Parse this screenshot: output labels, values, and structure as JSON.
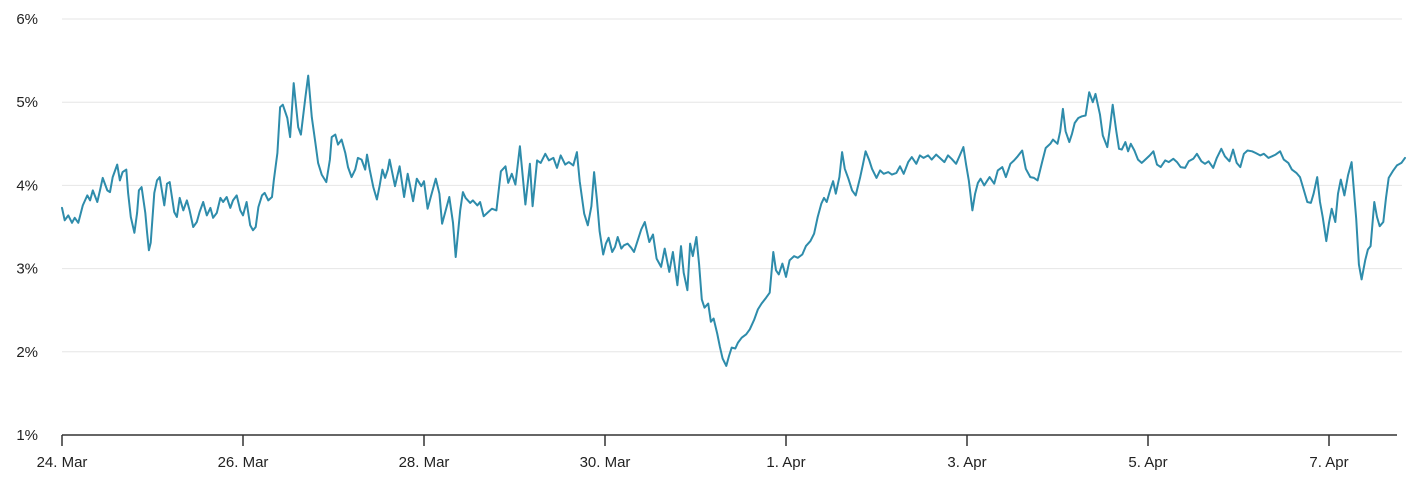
{
  "chart_data": {
    "type": "line",
    "title": "",
    "legend": "none",
    "grid": "horizontal",
    "unit": "%",
    "y_axis": {
      "min": 1,
      "max": 6,
      "labels": [
        "6%",
        "5%",
        "4%",
        "3%",
        "2%",
        "1%"
      ],
      "label_values": [
        6,
        5,
        4,
        3,
        2,
        1
      ],
      "gridline_values": [
        6,
        5,
        4,
        3,
        2
      ]
    },
    "x_axis": {
      "tick_labels": [
        "24. Mar",
        "26. Mar",
        "28. Mar",
        "30. Mar",
        "1. Apr",
        "3. Apr",
        "5. Apr",
        "7. Apr"
      ],
      "tick_day_offsets": [
        0,
        2,
        4,
        6,
        8,
        10,
        12,
        14
      ],
      "range_days": [
        0,
        14.85
      ]
    },
    "points_day_pct": [
      [
        0,
        3.73
      ],
      [
        0.03,
        3.58
      ],
      [
        0.07,
        3.64
      ],
      [
        0.11,
        3.55
      ],
      [
        0.14,
        3.61
      ],
      [
        0.18,
        3.55
      ],
      [
        0.23,
        3.76
      ],
      [
        0.28,
        3.88
      ],
      [
        0.31,
        3.82
      ],
      [
        0.34,
        3.94
      ],
      [
        0.39,
        3.8
      ],
      [
        0.42,
        3.94
      ],
      [
        0.45,
        4.09
      ],
      [
        0.5,
        3.94
      ],
      [
        0.53,
        3.92
      ],
      [
        0.56,
        4.1
      ],
      [
        0.61,
        4.25
      ],
      [
        0.64,
        4.06
      ],
      [
        0.67,
        4.16
      ],
      [
        0.71,
        4.19
      ],
      [
        0.73,
        3.91
      ],
      [
        0.76,
        3.62
      ],
      [
        0.8,
        3.43
      ],
      [
        0.83,
        3.67
      ],
      [
        0.85,
        3.94
      ],
      [
        0.88,
        3.98
      ],
      [
        0.92,
        3.67
      ],
      [
        0.94,
        3.43
      ],
      [
        0.96,
        3.22
      ],
      [
        0.98,
        3.31
      ],
      [
        1.02,
        3.91
      ],
      [
        1.05,
        4.06
      ],
      [
        1.08,
        4.1
      ],
      [
        1.13,
        3.76
      ],
      [
        1.16,
        4.02
      ],
      [
        1.19,
        4.04
      ],
      [
        1.24,
        3.68
      ],
      [
        1.27,
        3.62
      ],
      [
        1.3,
        3.85
      ],
      [
        1.34,
        3.7
      ],
      [
        1.38,
        3.82
      ],
      [
        1.41,
        3.7
      ],
      [
        1.45,
        3.5
      ],
      [
        1.49,
        3.56
      ],
      [
        1.52,
        3.68
      ],
      [
        1.56,
        3.8
      ],
      [
        1.6,
        3.64
      ],
      [
        1.64,
        3.73
      ],
      [
        1.67,
        3.61
      ],
      [
        1.71,
        3.67
      ],
      [
        1.75,
        3.85
      ],
      [
        1.78,
        3.8
      ],
      [
        1.82,
        3.86
      ],
      [
        1.86,
        3.73
      ],
      [
        1.89,
        3.82
      ],
      [
        1.93,
        3.88
      ],
      [
        1.97,
        3.7
      ],
      [
        2,
        3.64
      ],
      [
        2.04,
        3.8
      ],
      [
        2.08,
        3.52
      ],
      [
        2.11,
        3.46
      ],
      [
        2.14,
        3.5
      ],
      [
        2.17,
        3.74
      ],
      [
        2.21,
        3.88
      ],
      [
        2.24,
        3.91
      ],
      [
        2.28,
        3.82
      ],
      [
        2.32,
        3.86
      ],
      [
        2.34,
        4.06
      ],
      [
        2.38,
        4.39
      ],
      [
        2.41,
        4.94
      ],
      [
        2.44,
        4.97
      ],
      [
        2.49,
        4.81
      ],
      [
        2.52,
        4.58
      ],
      [
        2.56,
        5.23
      ],
      [
        2.61,
        4.7
      ],
      [
        2.64,
        4.61
      ],
      [
        2.69,
        5.06
      ],
      [
        2.72,
        5.32
      ],
      [
        2.76,
        4.82
      ],
      [
        2.8,
        4.51
      ],
      [
        2.83,
        4.27
      ],
      [
        2.87,
        4.13
      ],
      [
        2.92,
        4.04
      ],
      [
        2.96,
        4.31
      ],
      [
        2.98,
        4.58
      ],
      [
        3.02,
        4.61
      ],
      [
        3.05,
        4.49
      ],
      [
        3.09,
        4.55
      ],
      [
        3.13,
        4.39
      ],
      [
        3.16,
        4.22
      ],
      [
        3.2,
        4.1
      ],
      [
        3.24,
        4.19
      ],
      [
        3.27,
        4.33
      ],
      [
        3.31,
        4.31
      ],
      [
        3.35,
        4.19
      ],
      [
        3.37,
        4.37
      ],
      [
        3.4,
        4.19
      ],
      [
        3.44,
        3.98
      ],
      [
        3.48,
        3.83
      ],
      [
        3.51,
        4
      ],
      [
        3.54,
        4.19
      ],
      [
        3.57,
        4.09
      ],
      [
        3.6,
        4.19
      ],
      [
        3.62,
        4.31
      ],
      [
        3.68,
        3.99
      ],
      [
        3.73,
        4.23
      ],
      [
        3.78,
        3.86
      ],
      [
        3.82,
        4.14
      ],
      [
        3.88,
        3.81
      ],
      [
        3.92,
        4.08
      ],
      [
        3.97,
        3.99
      ],
      [
        4,
        4.05
      ],
      [
        4.04,
        3.72
      ],
      [
        4.08,
        3.88
      ],
      [
        4.13,
        4.08
      ],
      [
        4.17,
        3.9
      ],
      [
        4.2,
        3.54
      ],
      [
        4.24,
        3.7
      ],
      [
        4.28,
        3.86
      ],
      [
        4.32,
        3.55
      ],
      [
        4.35,
        3.14
      ],
      [
        4.4,
        3.7
      ],
      [
        4.43,
        3.92
      ],
      [
        4.46,
        3.85
      ],
      [
        4.51,
        3.79
      ],
      [
        4.54,
        3.82
      ],
      [
        4.59,
        3.76
      ],
      [
        4.62,
        3.8
      ],
      [
        4.66,
        3.63
      ],
      [
        4.71,
        3.68
      ],
      [
        4.75,
        3.72
      ],
      [
        4.8,
        3.7
      ],
      [
        4.85,
        4.17
      ],
      [
        4.9,
        4.23
      ],
      [
        4.93,
        4.03
      ],
      [
        4.97,
        4.14
      ],
      [
        5.01,
        4.01
      ],
      [
        5.06,
        4.47
      ],
      [
        5.12,
        3.77
      ],
      [
        5.17,
        4.26
      ],
      [
        5.2,
        3.75
      ],
      [
        5.25,
        4.3
      ],
      [
        5.29,
        4.27
      ],
      [
        5.34,
        4.38
      ],
      [
        5.38,
        4.3
      ],
      [
        5.43,
        4.33
      ],
      [
        5.47,
        4.21
      ],
      [
        5.51,
        4.36
      ],
      [
        5.56,
        4.25
      ],
      [
        5.6,
        4.28
      ],
      [
        5.65,
        4.24
      ],
      [
        5.69,
        4.4
      ],
      [
        5.72,
        4.05
      ],
      [
        5.77,
        3.66
      ],
      [
        5.81,
        3.52
      ],
      [
        5.85,
        3.75
      ],
      [
        5.88,
        4.16
      ],
      [
        5.91,
        3.83
      ],
      [
        5.94,
        3.45
      ],
      [
        5.98,
        3.17
      ],
      [
        6.01,
        3.3
      ],
      [
        6.04,
        3.37
      ],
      [
        6.08,
        3.2
      ],
      [
        6.11,
        3.26
      ],
      [
        6.14,
        3.38
      ],
      [
        6.18,
        3.24
      ],
      [
        6.21,
        3.28
      ],
      [
        6.25,
        3.3
      ],
      [
        6.29,
        3.25
      ],
      [
        6.32,
        3.2
      ],
      [
        6.35,
        3.3
      ],
      [
        6.4,
        3.47
      ],
      [
        6.44,
        3.56
      ],
      [
        6.49,
        3.32
      ],
      [
        6.53,
        3.41
      ],
      [
        6.57,
        3.12
      ],
      [
        6.62,
        3.02
      ],
      [
        6.66,
        3.24
      ],
      [
        6.71,
        2.96
      ],
      [
        6.75,
        3.2
      ],
      [
        6.8,
        2.8
      ],
      [
        6.84,
        3.27
      ],
      [
        6.87,
        2.95
      ],
      [
        6.91,
        2.74
      ],
      [
        6.94,
        3.3
      ],
      [
        6.97,
        3.15
      ],
      [
        7.01,
        3.38
      ],
      [
        7.04,
        3.05
      ],
      [
        7.07,
        2.63
      ],
      [
        7.1,
        2.53
      ],
      [
        7.14,
        2.58
      ],
      [
        7.17,
        2.36
      ],
      [
        7.2,
        2.4
      ],
      [
        7.24,
        2.22
      ],
      [
        7.27,
        2.06
      ],
      [
        7.3,
        1.92
      ],
      [
        7.34,
        1.83
      ],
      [
        7.37,
        1.95
      ],
      [
        7.4,
        2.05
      ],
      [
        7.44,
        2.04
      ],
      [
        7.47,
        2.11
      ],
      [
        7.51,
        2.17
      ],
      [
        7.56,
        2.21
      ],
      [
        7.6,
        2.27
      ],
      [
        7.65,
        2.39
      ],
      [
        7.69,
        2.51
      ],
      [
        7.73,
        2.58
      ],
      [
        7.78,
        2.65
      ],
      [
        7.82,
        2.71
      ],
      [
        7.86,
        3.2
      ],
      [
        7.89,
        2.98
      ],
      [
        7.92,
        2.93
      ],
      [
        7.96,
        3.06
      ],
      [
        8,
        2.9
      ],
      [
        8.04,
        3.1
      ],
      [
        8.09,
        3.15
      ],
      [
        8.13,
        3.13
      ],
      [
        8.18,
        3.17
      ],
      [
        8.22,
        3.27
      ],
      [
        8.27,
        3.33
      ],
      [
        8.31,
        3.42
      ],
      [
        8.35,
        3.62
      ],
      [
        8.39,
        3.78
      ],
      [
        8.42,
        3.85
      ],
      [
        8.45,
        3.8
      ],
      [
        8.49,
        3.95
      ],
      [
        8.52,
        4.05
      ],
      [
        8.55,
        3.9
      ],
      [
        8.59,
        4.1
      ],
      [
        8.62,
        4.4
      ],
      [
        8.65,
        4.2
      ],
      [
        8.69,
        4.08
      ],
      [
        8.73,
        3.94
      ],
      [
        8.77,
        3.88
      ],
      [
        8.82,
        4.1
      ],
      [
        8.85,
        4.25
      ],
      [
        8.88,
        4.41
      ],
      [
        8.92,
        4.3
      ],
      [
        8.95,
        4.2
      ],
      [
        9,
        4.09
      ],
      [
        9.04,
        4.18
      ],
      [
        9.08,
        4.14
      ],
      [
        9.13,
        4.16
      ],
      [
        9.17,
        4.13
      ],
      [
        9.22,
        4.15
      ],
      [
        9.26,
        4.23
      ],
      [
        9.3,
        4.14
      ],
      [
        9.35,
        4.28
      ],
      [
        9.39,
        4.34
      ],
      [
        9.44,
        4.26
      ],
      [
        9.48,
        4.36
      ],
      [
        9.52,
        4.33
      ],
      [
        9.57,
        4.36
      ],
      [
        9.61,
        4.31
      ],
      [
        9.66,
        4.37
      ],
      [
        9.7,
        4.33
      ],
      [
        9.75,
        4.28
      ],
      [
        9.79,
        4.36
      ],
      [
        9.83,
        4.32
      ],
      [
        9.88,
        4.26
      ],
      [
        9.92,
        4.36
      ],
      [
        9.96,
        4.46
      ],
      [
        9.99,
        4.25
      ],
      [
        10.02,
        4.06
      ],
      [
        10.06,
        3.7
      ],
      [
        10.09,
        3.9
      ],
      [
        10.12,
        4.03
      ],
      [
        10.15,
        4.08
      ],
      [
        10.19,
        4
      ],
      [
        10.22,
        4.05
      ],
      [
        10.25,
        4.1
      ],
      [
        10.3,
        4.02
      ],
      [
        10.34,
        4.18
      ],
      [
        10.39,
        4.22
      ],
      [
        10.43,
        4.1
      ],
      [
        10.48,
        4.26
      ],
      [
        10.52,
        4.3
      ],
      [
        10.56,
        4.35
      ],
      [
        10.61,
        4.42
      ],
      [
        10.65,
        4.2
      ],
      [
        10.7,
        4.1
      ],
      [
        10.74,
        4.09
      ],
      [
        10.78,
        4.06
      ],
      [
        10.83,
        4.28
      ],
      [
        10.87,
        4.45
      ],
      [
        10.92,
        4.5
      ],
      [
        10.95,
        4.55
      ],
      [
        11,
        4.5
      ],
      [
        11.03,
        4.65
      ],
      [
        11.06,
        4.92
      ],
      [
        11.09,
        4.65
      ],
      [
        11.13,
        4.52
      ],
      [
        11.16,
        4.62
      ],
      [
        11.19,
        4.75
      ],
      [
        11.23,
        4.81
      ],
      [
        11.27,
        4.83
      ],
      [
        11.31,
        4.84
      ],
      [
        11.35,
        5.12
      ],
      [
        11.39,
        5
      ],
      [
        11.42,
        5.1
      ],
      [
        11.47,
        4.85
      ],
      [
        11.5,
        4.6
      ],
      [
        11.55,
        4.46
      ],
      [
        11.58,
        4.7
      ],
      [
        11.61,
        4.97
      ],
      [
        11.65,
        4.65
      ],
      [
        11.68,
        4.44
      ],
      [
        11.71,
        4.43
      ],
      [
        11.75,
        4.52
      ],
      [
        11.78,
        4.41
      ],
      [
        11.81,
        4.5
      ],
      [
        11.85,
        4.42
      ],
      [
        11.89,
        4.31
      ],
      [
        11.93,
        4.27
      ],
      [
        11.98,
        4.32
      ],
      [
        12.02,
        4.36
      ],
      [
        12.06,
        4.41
      ],
      [
        12.1,
        4.25
      ],
      [
        12.14,
        4.22
      ],
      [
        12.19,
        4.3
      ],
      [
        12.23,
        4.28
      ],
      [
        12.28,
        4.32
      ],
      [
        12.32,
        4.28
      ],
      [
        12.36,
        4.22
      ],
      [
        12.41,
        4.21
      ],
      [
        12.45,
        4.29
      ],
      [
        12.5,
        4.32
      ],
      [
        12.54,
        4.38
      ],
      [
        12.59,
        4.29
      ],
      [
        12.63,
        4.26
      ],
      [
        12.67,
        4.29
      ],
      [
        12.72,
        4.21
      ],
      [
        12.76,
        4.33
      ],
      [
        12.81,
        4.44
      ],
      [
        12.85,
        4.35
      ],
      [
        12.9,
        4.29
      ],
      [
        12.94,
        4.43
      ],
      [
        12.98,
        4.27
      ],
      [
        13.02,
        4.22
      ],
      [
        13.06,
        4.38
      ],
      [
        13.1,
        4.42
      ],
      [
        13.15,
        4.41
      ],
      [
        13.19,
        4.39
      ],
      [
        13.24,
        4.36
      ],
      [
        13.28,
        4.38
      ],
      [
        13.33,
        4.33
      ],
      [
        13.37,
        4.35
      ],
      [
        13.41,
        4.37
      ],
      [
        13.46,
        4.41
      ],
      [
        13.5,
        4.31
      ],
      [
        13.55,
        4.27
      ],
      [
        13.59,
        4.19
      ],
      [
        13.64,
        4.15
      ],
      [
        13.68,
        4.1
      ],
      [
        13.72,
        3.95
      ],
      [
        13.76,
        3.8
      ],
      [
        13.8,
        3.79
      ],
      [
        13.83,
        3.9
      ],
      [
        13.87,
        4.1
      ],
      [
        13.9,
        3.8
      ],
      [
        13.93,
        3.62
      ],
      [
        13.97,
        3.33
      ],
      [
        14,
        3.55
      ],
      [
        14.03,
        3.72
      ],
      [
        14.07,
        3.56
      ],
      [
        14.1,
        3.9
      ],
      [
        14.13,
        4.07
      ],
      [
        14.17,
        3.88
      ],
      [
        14.21,
        4.12
      ],
      [
        14.25,
        4.28
      ],
      [
        14.3,
        3.6
      ],
      [
        14.33,
        3.05
      ],
      [
        14.36,
        2.87
      ],
      [
        14.4,
        3.1
      ],
      [
        14.43,
        3.23
      ],
      [
        14.46,
        3.27
      ],
      [
        14.5,
        3.8
      ],
      [
        14.53,
        3.62
      ],
      [
        14.56,
        3.51
      ],
      [
        14.6,
        3.56
      ],
      [
        14.63,
        3.85
      ],
      [
        14.66,
        4.09
      ],
      [
        14.71,
        4.18
      ],
      [
        14.75,
        4.24
      ],
      [
        14.8,
        4.27
      ],
      [
        14.84,
        4.33
      ]
    ]
  },
  "style": {
    "line_color": "#2e8cab",
    "grid_color": "#e6e6e6",
    "axis_color": "#333333",
    "label_color": "#222222",
    "background": "#ffffff"
  }
}
